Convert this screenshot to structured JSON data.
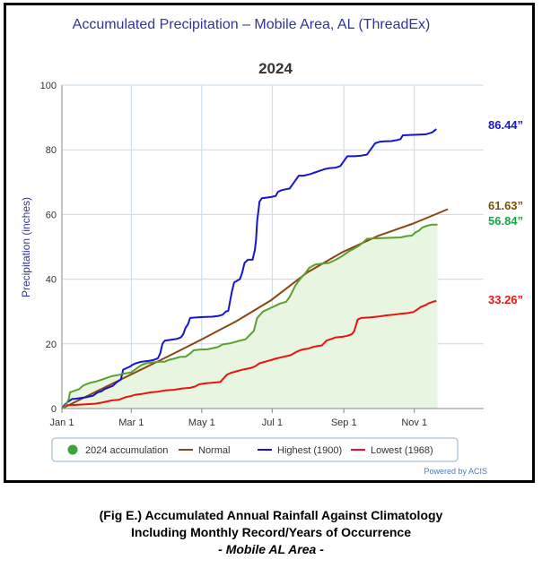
{
  "chart_data": {
    "type": "line",
    "title": "Accumulated Precipitation – Mobile Area, AL (ThreadEx)",
    "subtitle": "2024",
    "ylabel": "Precipitation (inches)",
    "xlabel": "",
    "ylim": [
      0,
      100
    ],
    "yticks": [
      "0",
      "20",
      "40",
      "60",
      "80",
      "100"
    ],
    "xlim": [
      1,
      366
    ],
    "xticks": [
      {
        "day": 1,
        "label": "Jan 1"
      },
      {
        "day": 61,
        "label": "Mar 1"
      },
      {
        "day": 122,
        "label": "May 1"
      },
      {
        "day": 183,
        "label": "Jul 1"
      },
      {
        "day": 245,
        "label": "Sep 1"
      },
      {
        "day": 306,
        "label": "Nov 1"
      }
    ],
    "grid": true,
    "legend_placement": "bottom",
    "credit": "Powered by ACIS",
    "series": [
      {
        "name": "2024 accumulation",
        "color": "#5aa02c",
        "fill": "#e8f5e0",
        "end_label": "56.84”",
        "end_label_color": "#1fa34a",
        "points": [
          [
            1,
            0
          ],
          [
            3,
            0.5
          ],
          [
            5,
            1.5
          ],
          [
            7,
            3
          ],
          [
            8,
            5
          ],
          [
            12,
            5.5
          ],
          [
            16,
            6
          ],
          [
            19,
            7
          ],
          [
            22,
            7.5
          ],
          [
            26,
            8
          ],
          [
            31,
            8.4
          ],
          [
            36,
            9
          ],
          [
            40,
            9.5
          ],
          [
            44,
            10
          ],
          [
            49,
            10.3
          ],
          [
            55,
            10.8
          ],
          [
            61,
            11.2
          ],
          [
            66,
            12.5
          ],
          [
            70,
            13.5
          ],
          [
            74,
            14
          ],
          [
            80,
            14.3
          ],
          [
            86,
            14.5
          ],
          [
            90,
            14.5
          ],
          [
            93,
            15
          ],
          [
            99,
            15.5
          ],
          [
            104,
            16
          ],
          [
            108,
            16
          ],
          [
            112,
            17
          ],
          [
            115,
            18
          ],
          [
            120,
            18.2
          ],
          [
            127,
            18.3
          ],
          [
            132,
            18.7
          ],
          [
            136,
            19
          ],
          [
            140,
            19.8
          ],
          [
            147,
            20.2
          ],
          [
            153,
            20.8
          ],
          [
            160,
            21.4
          ],
          [
            167,
            24
          ],
          [
            170,
            28
          ],
          [
            175,
            30
          ],
          [
            181,
            31
          ],
          [
            186,
            31.8
          ],
          [
            190,
            32.5
          ],
          [
            195,
            33
          ],
          [
            198,
            34.5
          ],
          [
            203,
            38
          ],
          [
            207,
            40
          ],
          [
            212,
            42
          ],
          [
            215,
            43.5
          ],
          [
            220,
            44.5
          ],
          [
            226,
            44.8
          ],
          [
            232,
            45
          ],
          [
            238,
            46
          ],
          [
            243,
            47
          ],
          [
            249,
            48.5
          ],
          [
            254,
            49.5
          ],
          [
            258,
            50.3
          ],
          [
            262,
            51.5
          ],
          [
            265,
            52.5
          ],
          [
            270,
            52.6
          ],
          [
            278,
            52.7
          ],
          [
            286,
            52.8
          ],
          [
            294,
            52.9
          ],
          [
            299,
            53.3
          ],
          [
            304,
            53.5
          ],
          [
            307,
            54.5
          ],
          [
            310,
            55
          ],
          [
            313,
            56
          ],
          [
            317,
            56.5
          ],
          [
            321,
            56.84
          ],
          [
            326,
            56.84
          ]
        ]
      },
      {
        "name": "Normal",
        "color": "#8b4513",
        "end_label": "61.63”",
        "end_label_color": "#7a5200",
        "points": [
          [
            1,
            0
          ],
          [
            31,
            5.3
          ],
          [
            60,
            10.4
          ],
          [
            91,
            15.8
          ],
          [
            121,
            21.2
          ],
          [
            152,
            27.0
          ],
          [
            182,
            33.5
          ],
          [
            213,
            42.0
          ],
          [
            244,
            48.4
          ],
          [
            274,
            53.3
          ],
          [
            305,
            57.2
          ],
          [
            335,
            61.63
          ]
        ]
      },
      {
        "name": "Highest (1900)",
        "color": "#1515d1",
        "end_label": "86.44”",
        "end_label_color": "#1515d1",
        "points": [
          [
            1,
            0
          ],
          [
            3,
            1
          ],
          [
            6,
            2
          ],
          [
            10,
            3
          ],
          [
            12,
            3
          ],
          [
            22,
            3.5
          ],
          [
            28,
            4
          ],
          [
            32,
            5
          ],
          [
            35,
            5.3
          ],
          [
            38,
            6
          ],
          [
            45,
            7
          ],
          [
            48,
            8
          ],
          [
            50,
            8.5
          ],
          [
            52,
            9
          ],
          [
            53,
            10.5
          ],
          [
            54,
            12
          ],
          [
            57,
            12.5
          ],
          [
            60,
            13
          ],
          [
            62,
            13.5
          ],
          [
            65,
            14
          ],
          [
            70,
            14.5
          ],
          [
            76,
            14.7
          ],
          [
            80,
            15
          ],
          [
            84,
            15.5
          ],
          [
            86,
            17
          ],
          [
            88,
            20
          ],
          [
            90,
            21
          ],
          [
            94,
            21.2
          ],
          [
            100,
            21.5
          ],
          [
            104,
            22
          ],
          [
            106,
            23
          ],
          [
            108,
            25
          ],
          [
            110,
            26
          ],
          [
            112,
            28
          ],
          [
            118,
            28.2
          ],
          [
            125,
            28.3
          ],
          [
            131,
            28.4
          ],
          [
            136,
            28.6
          ],
          [
            140,
            29
          ],
          [
            143,
            30
          ],
          [
            145,
            30.2
          ],
          [
            148,
            36
          ],
          [
            150,
            39
          ],
          [
            155,
            40
          ],
          [
            157,
            42
          ],
          [
            159,
            45
          ],
          [
            162,
            46
          ],
          [
            166,
            46
          ],
          [
            168,
            49
          ],
          [
            169,
            52
          ],
          [
            170,
            58
          ],
          [
            172,
            64
          ],
          [
            174,
            65
          ],
          [
            178,
            65.2
          ],
          [
            182,
            65.4
          ],
          [
            186,
            65.7
          ],
          [
            188,
            67
          ],
          [
            191,
            67.5
          ],
          [
            195,
            67.8
          ],
          [
            198,
            68
          ],
          [
            202,
            70
          ],
          [
            206,
            72
          ],
          [
            210,
            72
          ],
          [
            216,
            72.5
          ],
          [
            220,
            73
          ],
          [
            224,
            73.5
          ],
          [
            228,
            74
          ],
          [
            232,
            74.3
          ],
          [
            238,
            74.5
          ],
          [
            242,
            75
          ],
          [
            244,
            76
          ],
          [
            248,
            78
          ],
          [
            254,
            78
          ],
          [
            260,
            78.2
          ],
          [
            265,
            78.5
          ],
          [
            268,
            80
          ],
          [
            272,
            82
          ],
          [
            276,
            82.5
          ],
          [
            280,
            82.6
          ],
          [
            286,
            82.7
          ],
          [
            291,
            83
          ],
          [
            294,
            83.3
          ],
          [
            296,
            84.5
          ],
          [
            303,
            84.6
          ],
          [
            310,
            84.7
          ],
          [
            316,
            84.8
          ],
          [
            320,
            85.2
          ],
          [
            322,
            85.5
          ],
          [
            325,
            86.44
          ]
        ]
      },
      {
        "name": "Lowest (1968)",
        "color": "#ee1111",
        "end_label": "33.26”",
        "end_label_color": "#ee1111",
        "points": [
          [
            1,
            0
          ],
          [
            3,
            0.3
          ],
          [
            5,
            1
          ],
          [
            15,
            1.2
          ],
          [
            30,
            1.5
          ],
          [
            35,
            1.8
          ],
          [
            40,
            2.2
          ],
          [
            44,
            2.5
          ],
          [
            50,
            2.7
          ],
          [
            56,
            3.5
          ],
          [
            60,
            3.8
          ],
          [
            64,
            4.2
          ],
          [
            70,
            4.5
          ],
          [
            78,
            5
          ],
          [
            84,
            5.2
          ],
          [
            90,
            5.6
          ],
          [
            98,
            5.8
          ],
          [
            105,
            6.2
          ],
          [
            112,
            6.4
          ],
          [
            116,
            6.8
          ],
          [
            120,
            7.5
          ],
          [
            126,
            7.8
          ],
          [
            132,
            8
          ],
          [
            138,
            8.2
          ],
          [
            144,
            10.5
          ],
          [
            147,
            11
          ],
          [
            152,
            11.5
          ],
          [
            157,
            12
          ],
          [
            164,
            12.5
          ],
          [
            168,
            13
          ],
          [
            172,
            14
          ],
          [
            177,
            14.5
          ],
          [
            182,
            15
          ],
          [
            187,
            15.5
          ],
          [
            193,
            16
          ],
          [
            199,
            16.5
          ],
          [
            204,
            17.5
          ],
          [
            207,
            18
          ],
          [
            210,
            18.3
          ],
          [
            214,
            18.5
          ],
          [
            218,
            19
          ],
          [
            222,
            19.3
          ],
          [
            226,
            19.5
          ],
          [
            230,
            21
          ],
          [
            234,
            21.5
          ],
          [
            238,
            22
          ],
          [
            244,
            22.2
          ],
          [
            248,
            22.5
          ],
          [
            252,
            23
          ],
          [
            254,
            24
          ],
          [
            257,
            27.5
          ],
          [
            260,
            28
          ],
          [
            268,
            28.2
          ],
          [
            276,
            28.5
          ],
          [
            282,
            28.8
          ],
          [
            288,
            29
          ],
          [
            294,
            29.3
          ],
          [
            300,
            29.5
          ],
          [
            305,
            29.8
          ],
          [
            308,
            30.5
          ],
          [
            312,
            31.5
          ],
          [
            316,
            32
          ],
          [
            318,
            32.5
          ],
          [
            322,
            33
          ],
          [
            325,
            33.26
          ]
        ]
      }
    ]
  },
  "caption": {
    "line1": "(Fig E.) Accumulated Annual Rainfall Against  Climatology",
    "line2": "Including Monthly Record/Years of Occurrence",
    "line3": "- Mobile AL Area -"
  }
}
